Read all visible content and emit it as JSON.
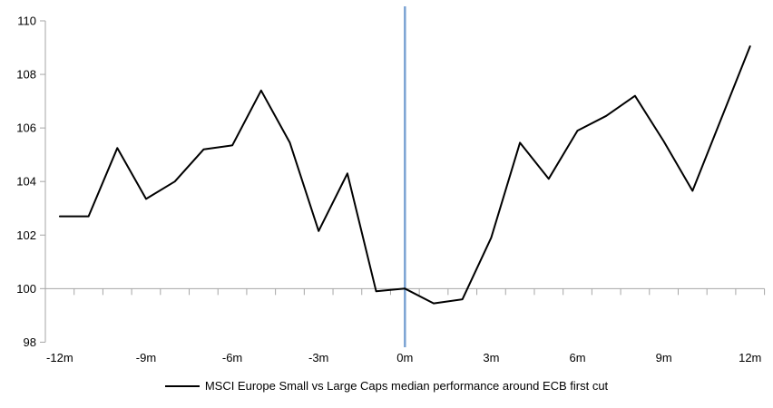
{
  "page": {
    "background": "#ffffff"
  },
  "legend": {
    "label": "MSCI Europe Small vs Large Caps median performance around ECB first cut",
    "swatch_color": "#000000"
  },
  "chart_data": {
    "type": "line",
    "title": "",
    "xlabel": "",
    "ylabel": "",
    "x_months": [
      -12,
      -11,
      -10,
      -9,
      -8,
      -7,
      -6,
      -5,
      -4,
      -3,
      -2,
      -1,
      0,
      1,
      2,
      3,
      4,
      5,
      6,
      7,
      8,
      9,
      10,
      11,
      12
    ],
    "series": [
      {
        "name": "MSCI Europe Small vs Large Caps median performance around ECB first cut",
        "color": "#000000",
        "values": [
          102.7,
          102.7,
          105.25,
          103.35,
          104.0,
          105.2,
          105.35,
          107.4,
          105.45,
          102.15,
          104.3,
          99.9,
          100.0,
          99.45,
          99.6,
          101.9,
          105.45,
          104.1,
          105.9,
          106.45,
          107.2,
          105.5,
          103.65,
          106.35,
          109.05
        ]
      }
    ],
    "x_axis": {
      "tick_labels": [
        "-12m",
        "-9m",
        "-6m",
        "-3m",
        "0m",
        "3m",
        "6m",
        "9m",
        "12m"
      ],
      "tick_months": [
        -12,
        -9,
        -6,
        -3,
        0,
        3,
        6,
        9,
        12
      ]
    },
    "y_axis": {
      "ticks": [
        98,
        100,
        102,
        104,
        106,
        108,
        110
      ],
      "range": [
        98,
        110
      ]
    },
    "baseline_value": 100,
    "event_line": {
      "month": 0,
      "color": "#7ba3d3"
    },
    "axis_color": "#a6a6a6",
    "grid": false,
    "legend_position": "bottom-center"
  }
}
